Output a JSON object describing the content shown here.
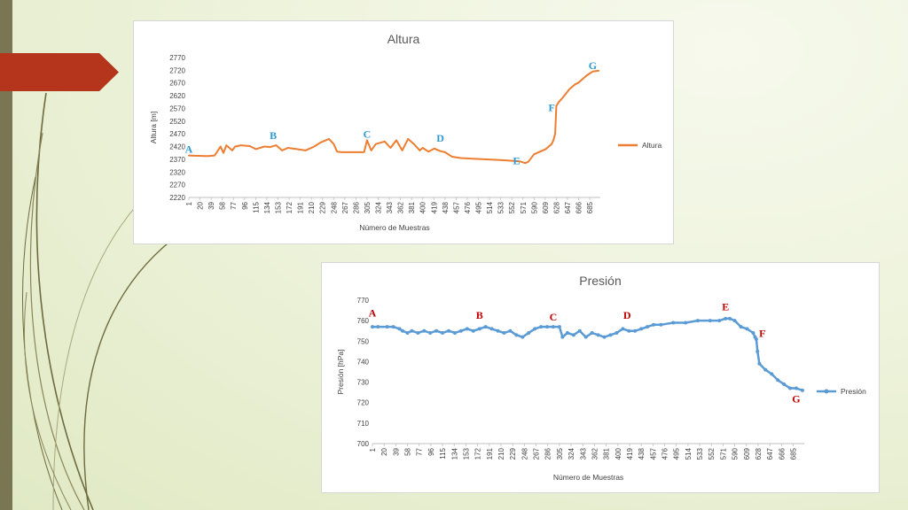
{
  "slide": {
    "colors": {
      "side_bar": "#7a7552",
      "tab": "#b5351c",
      "decor_lines": "#6e6a3e"
    }
  },
  "chart_data": [
    {
      "type": "line",
      "title": "Altura",
      "xlabel": "Número de Muestras",
      "ylabel": "Altura [m]",
      "ylim": [
        2220,
        2770
      ],
      "yticks": [
        2220,
        2270,
        2320,
        2370,
        2420,
        2470,
        2520,
        2570,
        2620,
        2670,
        2720,
        2770
      ],
      "xlim": [
        1,
        703
      ],
      "xticks": [
        1,
        20,
        39,
        58,
        77,
        96,
        115,
        134,
        153,
        172,
        191,
        210,
        229,
        248,
        267,
        286,
        305,
        324,
        343,
        362,
        381,
        400,
        419,
        438,
        457,
        476,
        495,
        514,
        533,
        552,
        571,
        590,
        609,
        628,
        647,
        666,
        685
      ],
      "legend_position": "right",
      "grid": false,
      "color": "#ed7d31",
      "series": [
        {
          "name": "Altura",
          "x": [
            1,
            10,
            30,
            35,
            40,
            45,
            55,
            60,
            65,
            75,
            80,
            90,
            105,
            115,
            130,
            140,
            150,
            160,
            170,
            185,
            200,
            215,
            225,
            232,
            240,
            248,
            254,
            262,
            300,
            305,
            312,
            320,
            335,
            345,
            355,
            365,
            375,
            385,
            395,
            400,
            410,
            420,
            430,
            438,
            450,
            465,
            485,
            505,
            525,
            545,
            565,
            575,
            580,
            590,
            600,
            610,
            620,
            623,
            626,
            628,
            632,
            638,
            645,
            650,
            655,
            660,
            665,
            670,
            680,
            690,
            700
          ],
          "y": [
            2385,
            2384,
            2383,
            2383,
            2384,
            2385,
            2420,
            2395,
            2425,
            2405,
            2420,
            2425,
            2422,
            2410,
            2420,
            2418,
            2425,
            2405,
            2415,
            2410,
            2405,
            2420,
            2435,
            2442,
            2450,
            2430,
            2400,
            2398,
            2398,
            2445,
            2405,
            2430,
            2440,
            2415,
            2445,
            2405,
            2450,
            2430,
            2405,
            2415,
            2400,
            2412,
            2402,
            2398,
            2380,
            2375,
            2372,
            2370,
            2368,
            2365,
            2362,
            2355,
            2360,
            2390,
            2400,
            2410,
            2430,
            2445,
            2470,
            2580,
            2595,
            2610,
            2630,
            2645,
            2655,
            2665,
            2670,
            2680,
            2700,
            2715,
            2718
          ]
        }
      ],
      "annotations": [
        {
          "label": "A",
          "x": 1,
          "y": 2395
        },
        {
          "label": "B",
          "x": 145,
          "y": 2450
        },
        {
          "label": "C",
          "x": 305,
          "y": 2455
        },
        {
          "label": "D",
          "x": 430,
          "y": 2440
        },
        {
          "label": "E",
          "x": 560,
          "y": 2350
        },
        {
          "label": "F",
          "x": 620,
          "y": 2560
        },
        {
          "label": "G",
          "x": 690,
          "y": 2725
        }
      ],
      "annotation_color": "#2e9ad0"
    },
    {
      "type": "line",
      "title": "Presión",
      "xlabel": "Número de Muestras",
      "ylabel": "Presión [hPa]",
      "ylim": [
        700,
        770
      ],
      "yticks": [
        700,
        710,
        720,
        730,
        740,
        750,
        760,
        770
      ],
      "xlim": [
        1,
        703
      ],
      "xticks": [
        1,
        20,
        39,
        58,
        77,
        96,
        115,
        134,
        153,
        172,
        191,
        210,
        229,
        248,
        267,
        286,
        305,
        324,
        343,
        362,
        381,
        400,
        419,
        438,
        457,
        476,
        495,
        514,
        533,
        552,
        571,
        590,
        609,
        628,
        647,
        666,
        685
      ],
      "legend_position": "right",
      "grid": false,
      "color": "#5b9bd5",
      "series": [
        {
          "name": "Presión",
          "x": [
            1,
            10,
            25,
            35,
            45,
            50,
            58,
            65,
            75,
            85,
            95,
            105,
            115,
            125,
            135,
            145,
            155,
            165,
            175,
            185,
            195,
            205,
            215,
            225,
            235,
            245,
            255,
            265,
            275,
            285,
            295,
            305,
            310,
            318,
            328,
            338,
            348,
            358,
            368,
            378,
            388,
            398,
            408,
            418,
            428,
            438,
            448,
            458,
            470,
            490,
            510,
            530,
            550,
            565,
            575,
            582,
            590,
            600,
            610,
            620,
            623,
            625,
            627,
            630,
            640,
            650,
            660,
            670,
            680,
            690,
            700
          ],
          "y": [
            757,
            757,
            757,
            757,
            756,
            755,
            754,
            755,
            754,
            755,
            754,
            755,
            754,
            755,
            754,
            755,
            756,
            755,
            756,
            757,
            756,
            755,
            754,
            755,
            753,
            752,
            754,
            756,
            757,
            757,
            757,
            757,
            752,
            754,
            753,
            755,
            752,
            754,
            753,
            752,
            753,
            754,
            756,
            755,
            755,
            756,
            757,
            758,
            758,
            759,
            759,
            760,
            760,
            760,
            761,
            761,
            760,
            757,
            756,
            754,
            752,
            751,
            745,
            739,
            736,
            734,
            731,
            729,
            727,
            727,
            726
          ]
        }
      ],
      "annotations": [
        {
          "label": "A",
          "x": 1,
          "y": 762
        },
        {
          "label": "B",
          "x": 175,
          "y": 761
        },
        {
          "label": "C",
          "x": 295,
          "y": 760
        },
        {
          "label": "D",
          "x": 415,
          "y": 761
        },
        {
          "label": "E",
          "x": 575,
          "y": 765
        },
        {
          "label": "F",
          "x": 635,
          "y": 752
        },
        {
          "label": "G",
          "x": 690,
          "y": 720
        }
      ],
      "annotation_color": "#c00000"
    }
  ]
}
